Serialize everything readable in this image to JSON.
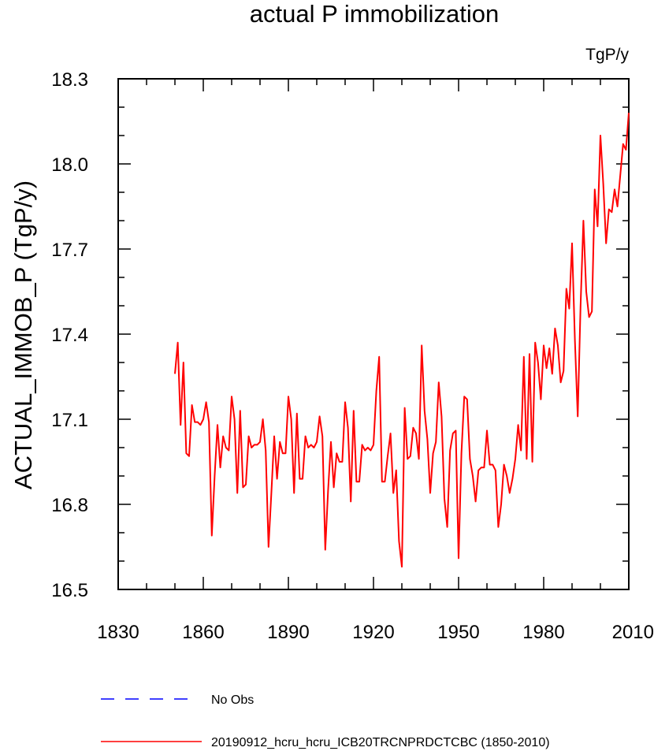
{
  "chart_data": {
    "type": "line",
    "title": "actual P immobilization",
    "units_label": "TgP/y",
    "xlabel": "",
    "ylabel": "ACTUAL_IMMOB_P  (TgP/y)",
    "xlim": [
      1830,
      2010
    ],
    "ylim": [
      16.5,
      18.3
    ],
    "x_ticks": [
      1830,
      1860,
      1890,
      1920,
      1950,
      1980,
      2010
    ],
    "x_tick_labels": [
      "1830",
      "1860",
      "1890",
      "1920",
      "1950",
      "1980",
      "2010"
    ],
    "y_ticks": [
      16.5,
      16.8,
      17.1,
      17.4,
      17.7,
      18.0,
      18.3
    ],
    "y_tick_labels": [
      "16.5",
      "16.8",
      "17.1",
      "17.4",
      "17.7",
      "18.0",
      "18.3"
    ],
    "grid": false,
    "legend_position": "bottom-left",
    "legend": [
      {
        "label": "No Obs",
        "color": "#0000ff",
        "style": "dashed"
      },
      {
        "label": "20190912_hcru_hcru_ICB20TRCNPRDCTCBC (1850-2010)",
        "color": "#ff0000",
        "style": "solid"
      }
    ],
    "series": [
      {
        "color": "#ff0000",
        "x_start": 1850,
        "x_step": 1,
        "values": [
          17.26,
          17.37,
          17.08,
          17.3,
          16.98,
          16.97,
          17.15,
          17.09,
          17.09,
          17.08,
          17.1,
          17.16,
          17.09,
          16.69,
          16.9,
          17.08,
          16.93,
          17.04,
          17.0,
          16.99,
          17.18,
          17.1,
          16.84,
          17.13,
          16.86,
          16.87,
          17.04,
          17.0,
          17.01,
          17.01,
          17.02,
          17.1,
          16.99,
          16.65,
          16.84,
          17.04,
          16.89,
          17.02,
          16.98,
          16.98,
          17.18,
          17.1,
          16.84,
          17.12,
          16.89,
          16.89,
          17.04,
          17.0,
          17.01,
          17.0,
          17.02,
          17.11,
          17.04,
          16.64,
          16.85,
          17.02,
          16.86,
          16.98,
          16.95,
          16.95,
          17.16,
          17.07,
          16.81,
          17.13,
          16.88,
          16.88,
          17.01,
          16.99,
          17.0,
          16.99,
          17.01,
          17.2,
          17.32,
          16.88,
          16.88,
          16.97,
          17.05,
          16.84,
          16.92,
          16.67,
          16.58,
          17.14,
          16.96,
          16.97,
          17.07,
          17.05,
          16.96,
          17.36,
          17.13,
          17.03,
          16.84,
          16.98,
          17.02,
          17.23,
          17.11,
          16.82,
          16.72,
          16.99,
          17.05,
          17.06,
          16.61,
          16.98,
          17.18,
          17.17,
          16.96,
          16.9,
          16.81,
          16.92,
          16.93,
          16.93,
          17.06,
          16.94,
          16.94,
          16.92,
          16.72,
          16.8,
          16.94,
          16.9,
          16.84,
          16.89,
          16.96,
          17.08,
          16.99,
          17.32,
          16.96,
          17.33,
          16.95,
          17.37,
          17.3,
          17.17,
          17.36,
          17.28,
          17.35,
          17.26,
          17.42,
          17.36,
          17.23,
          17.27,
          17.56,
          17.49,
          17.72,
          17.38,
          17.11,
          17.5,
          17.8,
          17.55,
          17.46,
          17.48,
          17.91,
          17.78,
          18.1,
          17.93,
          17.72,
          17.84,
          17.83,
          17.91,
          17.85,
          17.96,
          18.07,
          18.05,
          18.18
        ]
      }
    ]
  }
}
